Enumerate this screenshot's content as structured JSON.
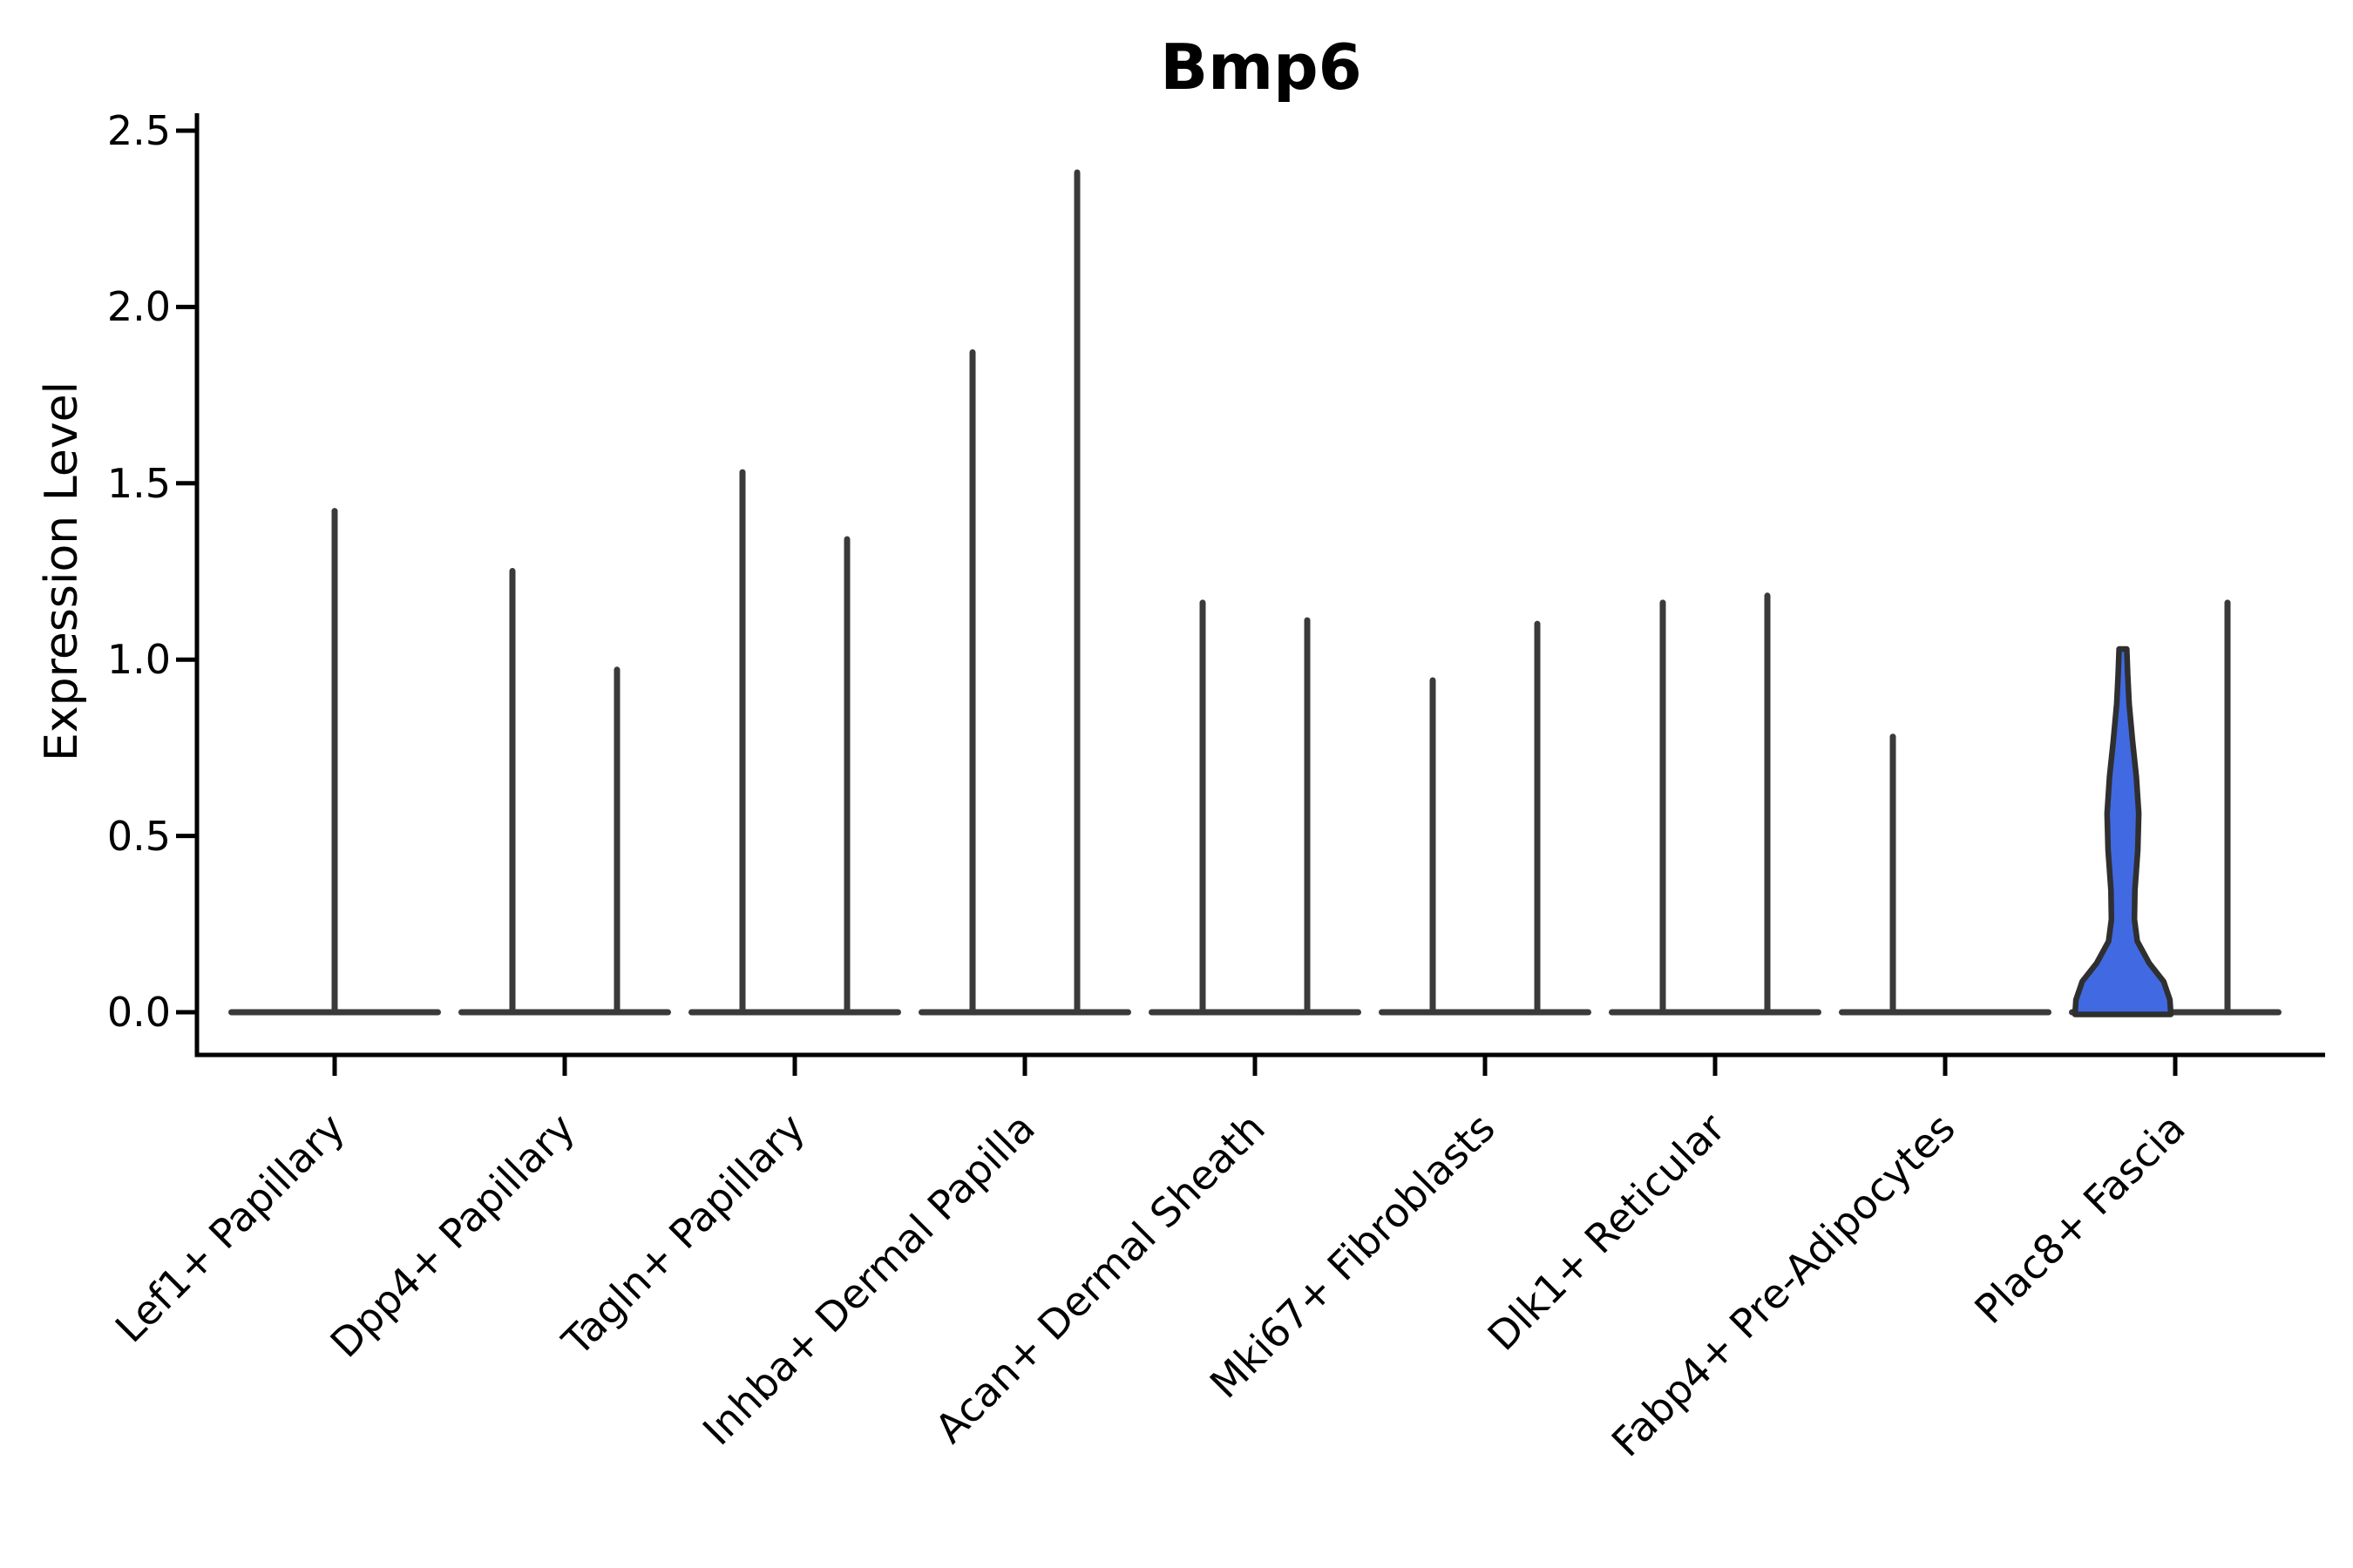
{
  "title": "Bmp6",
  "axes": {
    "ylabel": "Expression Level",
    "ytick_labels": [
      "0.0",
      "0.5",
      "1.0",
      "1.5",
      "2.0",
      "2.5"
    ]
  },
  "colors": {
    "spike": "#3a3a3a",
    "band": "#3a3a3a",
    "axis": "#000000",
    "violin_fill": "#4169E1",
    "violin_outline": "#2f2f2f"
  },
  "chart_data": {
    "type": "violin",
    "title": "Bmp6",
    "xlabel": "",
    "ylabel": "Expression Level",
    "ylim": [
      0,
      2.5
    ],
    "yticks": [
      0.0,
      0.5,
      1.0,
      1.5,
      2.0,
      2.5
    ],
    "grid": false,
    "legend": "none",
    "categories": [
      "Lef1+ Papillary",
      "Dpp4+ Papillary",
      "Tagln+ Papillary",
      "Inhba+ Dermal Papilla",
      "Acan+ Dermal Sheath",
      "Mki67+ Fibroblasts",
      "Dlk1+ Reticular",
      "Fabp4+ Pre-Adipocytes",
      "Plac8+ Fascia"
    ],
    "description": "Violin plot of Bmp6 expression; most violins collapse to a wide base at 0 with a thin density spike up to the max expression value. Two thin violins per category (split pairs) except where noted. Only the left violin of Plac8+ Fascia has appreciable density (blue filled violin).",
    "groups": [
      {
        "label": "Lef1+ Papillary",
        "violins": [
          {
            "position": "center",
            "shape": "spike",
            "max": 1.43
          }
        ]
      },
      {
        "label": "Dpp4+ Papillary",
        "violins": [
          {
            "position": "left",
            "shape": "spike",
            "max": 1.26
          },
          {
            "position": "right",
            "shape": "spike",
            "max": 0.98
          }
        ]
      },
      {
        "label": "Tagln+ Papillary",
        "violins": [
          {
            "position": "left",
            "shape": "spike",
            "max": 1.54
          },
          {
            "position": "right",
            "shape": "spike",
            "max": 1.35
          }
        ]
      },
      {
        "label": "Inhba+ Dermal Papilla",
        "violins": [
          {
            "position": "left",
            "shape": "spike",
            "max": 1.88
          },
          {
            "position": "right",
            "shape": "spike",
            "max": 2.39
          }
        ]
      },
      {
        "label": "Acan+ Dermal Sheath",
        "violins": [
          {
            "position": "left",
            "shape": "spike",
            "max": 1.17
          },
          {
            "position": "right",
            "shape": "spike",
            "max": 1.12
          }
        ]
      },
      {
        "label": "Mki67+ Fibroblasts",
        "violins": [
          {
            "position": "left",
            "shape": "spike",
            "max": 0.95
          },
          {
            "position": "right",
            "shape": "spike",
            "max": 1.11
          }
        ]
      },
      {
        "label": "Dlk1+ Reticular",
        "violins": [
          {
            "position": "left",
            "shape": "spike",
            "max": 1.17
          },
          {
            "position": "right",
            "shape": "spike",
            "max": 1.19
          }
        ]
      },
      {
        "label": "Fabp4+ Pre-Adipocytes",
        "violins": [
          {
            "position": "left",
            "shape": "spike",
            "max": 0.79
          },
          {
            "position": "right",
            "shape": "flat",
            "max": 0.0
          }
        ]
      },
      {
        "label": "Plac8+ Fascia",
        "violins": [
          {
            "position": "left",
            "shape": "filled-violin",
            "max": 1.03,
            "fill": "#4169E1",
            "profile": [
              [
                0,
                1
              ],
              [
                0.04,
                0.98
              ],
              [
                0.09,
                0.85
              ],
              [
                0.14,
                0.55
              ],
              [
                0.2,
                0.3
              ],
              [
                0.26,
                0.24
              ],
              [
                0.34,
                0.25
              ],
              [
                0.45,
                0.31
              ],
              [
                0.55,
                0.33
              ],
              [
                0.65,
                0.28
              ],
              [
                0.75,
                0.2
              ],
              [
                0.85,
                0.13
              ],
              [
                0.93,
                0.1
              ],
              [
                1,
                0.08
              ]
            ],
            "base_halfwidth": 55
          },
          {
            "position": "right",
            "shape": "spike",
            "max": 1.17
          }
        ]
      }
    ]
  }
}
